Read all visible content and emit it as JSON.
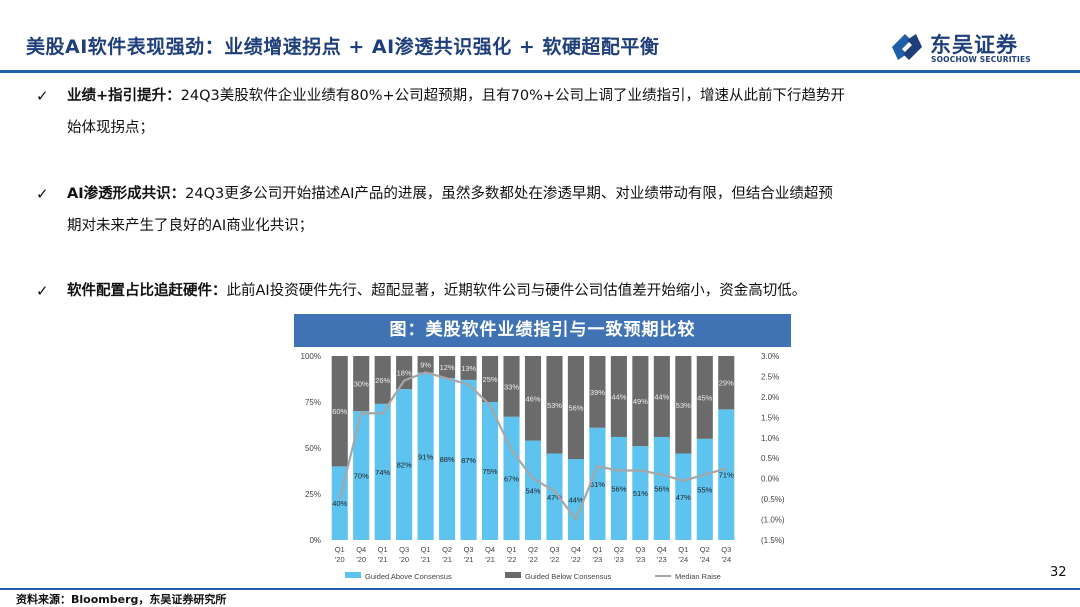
{
  "header": {
    "title": "美股AI软件表现强劲：业绩增速拐点 + AI渗透共识强化 + 软硬超配平衡",
    "logo_cn": "东吴证券",
    "logo_en": "SOOCHOW SECURITIES"
  },
  "bullets": [
    {
      "head": "业绩+指引提升：",
      "text": "24Q3美股软件企业业绩有80%+公司超预期，且有70%+公司上调了业绩指引，增速从此前下行趋势开",
      "cont": "始体现拐点；"
    },
    {
      "head": "AI渗透形成共识：",
      "text": "24Q3更多公司开始描述AI产品的进展，虽然多数都处在渗透早期、对业绩带动有限，但结合业绩超预",
      "cont": "期对未来产生了良好的AI商业化共识；"
    },
    {
      "head": "软件配置占比追赶硬件：",
      "text": "此前AI投资硬件先行、超配显著，近期软件公司与硬件公司估值差开始缩小，资金高切低。",
      "cont": ""
    }
  ],
  "chart_banner": "图：美股软件业绩指引与一致预期比较",
  "chart_data": {
    "type": "bar",
    "stacked": true,
    "categories": [
      "Q1 '20",
      "Q4 '20",
      "Q1 '21",
      "Q3 '20",
      "Q1 '21",
      "Q2 '21",
      "Q3 '21",
      "Q4 '21",
      "Q1 '22",
      "Q2 '22",
      "Q3 '22",
      "Q4 '22",
      "Q1 '23",
      "Q2 '23",
      "Q3 '23",
      "Q4 '23",
      "Q1 '24",
      "Q2 '24",
      "Q3 '24"
    ],
    "category_lines": [
      [
        "Q1",
        "'20"
      ],
      [
        "Q4",
        "'20"
      ],
      [
        "Q1",
        "'21"
      ],
      [
        "Q3",
        "'20"
      ],
      [
        "Q1",
        "'21"
      ],
      [
        "Q2",
        "'21"
      ],
      [
        "Q3",
        "'21"
      ],
      [
        "Q4",
        "'21"
      ],
      [
        "Q1",
        "'22"
      ],
      [
        "Q2",
        "'22"
      ],
      [
        "Q3",
        "'22"
      ],
      [
        "Q4",
        "'22"
      ],
      [
        "Q1",
        "'23"
      ],
      [
        "Q2",
        "'23"
      ],
      [
        "Q3",
        "'23"
      ],
      [
        "Q4",
        "'23"
      ],
      [
        "Q1",
        "'24"
      ],
      [
        "Q2",
        "'24"
      ],
      [
        "Q3",
        "'24"
      ]
    ],
    "series": [
      {
        "name": "Guided Above Consensus",
        "color": "#5ec3ef",
        "values": [
          40,
          70,
          74,
          82,
          91,
          88,
          87,
          75,
          67,
          54,
          47,
          44,
          61,
          56,
          51,
          56,
          47,
          55,
          71
        ]
      },
      {
        "name": "Guided Below Consensus",
        "color": "#6b6b6b",
        "values": [
          60,
          30,
          26,
          18,
          9,
          12,
          13,
          25,
          33,
          46,
          53,
          56,
          39,
          44,
          49,
          44,
          53,
          45,
          29
        ]
      },
      {
        "name": "Median Raise",
        "color": "#a6a6a6",
        "type": "line",
        "axis": "right",
        "values": [
          -0.5,
          1.6,
          1.6,
          2.4,
          2.6,
          2.45,
          2.3,
          1.8,
          0.7,
          0.0,
          -0.3,
          -1.0,
          0.3,
          0.2,
          0.2,
          0.1,
          -0.05,
          0.1,
          0.25
        ]
      }
    ],
    "y_left": {
      "min": 0,
      "max": 100,
      "ticks": [
        "0%",
        "25%",
        "50%",
        "75%",
        "100%"
      ]
    },
    "y_right": {
      "min": -1.5,
      "max": 3.0,
      "ticks": [
        "(1.5%)",
        "(1.0%)",
        "(0.5%)",
        "0.0%",
        "0.5%",
        "1.0%",
        "1.5%",
        "2.0%",
        "2.5%",
        "3.0%"
      ]
    },
    "legend_position": "bottom"
  },
  "footer": {
    "page": "32",
    "source": "资料来源：Bloomberg，东吴证券研究所"
  }
}
